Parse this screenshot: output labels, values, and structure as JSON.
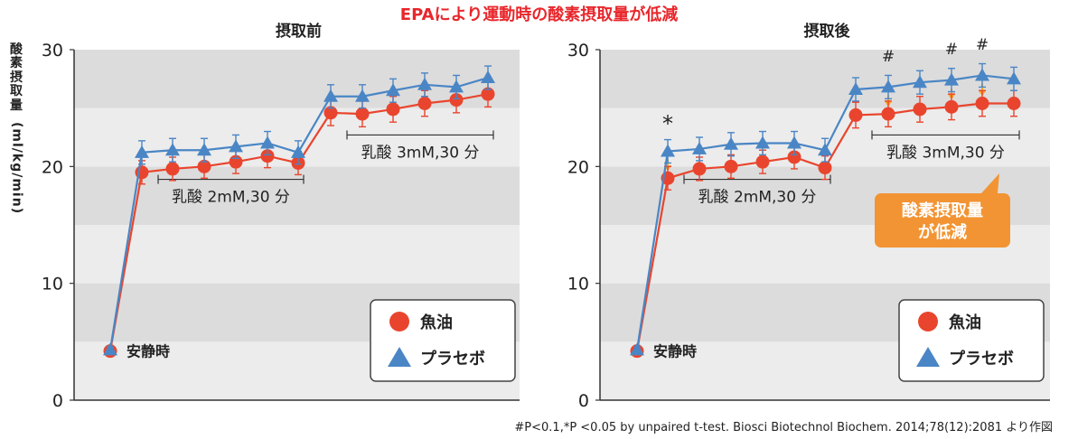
{
  "title": "EPAにより運動時の酸素摂取量が低減",
  "ylabel_jp": [
    "酸",
    "素",
    "摂",
    "取",
    "量"
  ],
  "ylabel_unit": "(ml/kg/min)",
  "footnote": "#P<0.1,*P <0.05 by unpaired t-test. Biosci Biotechnol Biochem. 2014;78(12):2081 より作図",
  "colors": {
    "fish_oil": "#e9452e",
    "placebo": "#4a86c5",
    "band_dark": "#dcdcdc",
    "band_light": "#ececec",
    "callout": "#f29433",
    "arrow": "#f5a623"
  },
  "chart_data": [
    {
      "type": "line",
      "title": "摂取前",
      "ylim": [
        0,
        30
      ],
      "yticks": [
        "0",
        "10",
        "20",
        "30"
      ],
      "series": [
        {
          "name": "魚油",
          "marker": "circle",
          "values": [
            4.2,
            19.5,
            19.8,
            20.0,
            20.4,
            20.9,
            20.3,
            24.6,
            24.5,
            24.9,
            25.4,
            25.7,
            26.2
          ],
          "errors": [
            0.3,
            1.0,
            1.0,
            1.0,
            1.0,
            1.0,
            1.0,
            1.1,
            1.1,
            1.1,
            1.1,
            1.1,
            1.1
          ]
        },
        {
          "name": "プラセボ",
          "marker": "triangle",
          "values": [
            4.3,
            21.2,
            21.4,
            21.4,
            21.7,
            22.0,
            21.2,
            26.0,
            26.0,
            26.5,
            27.0,
            26.8,
            27.6
          ],
          "errors": [
            0.3,
            1.0,
            1.0,
            1.0,
            1.0,
            1.0,
            1.0,
            1.0,
            1.0,
            1.0,
            1.0,
            1.0,
            1.0
          ]
        }
      ],
      "annotations": [
        {
          "text": "安静時",
          "type": "label"
        },
        {
          "text": "乳酸 2mM,30 分",
          "type": "bracket",
          "from": 1,
          "to": 6
        },
        {
          "text": "乳酸 3mM,30 分",
          "type": "bracket",
          "from": 7,
          "to": 12
        }
      ],
      "legend": {
        "position": "bottom-right",
        "entries": [
          "魚油",
          "プラセボ"
        ]
      }
    },
    {
      "type": "line",
      "title": "摂取後",
      "ylim": [
        0,
        30
      ],
      "yticks": [
        "0",
        "10",
        "20",
        "30"
      ],
      "series": [
        {
          "name": "魚油",
          "marker": "circle",
          "values": [
            4.2,
            19.0,
            19.8,
            20.0,
            20.4,
            20.8,
            19.9,
            24.4,
            24.5,
            24.9,
            25.1,
            25.4,
            25.4
          ],
          "errors": [
            0.3,
            1.0,
            1.0,
            1.0,
            1.0,
            1.0,
            1.0,
            1.1,
            1.1,
            1.1,
            1.1,
            1.1,
            1.1
          ]
        },
        {
          "name": "プラセボ",
          "marker": "triangle",
          "values": [
            4.3,
            21.3,
            21.5,
            21.9,
            22.0,
            22.0,
            21.4,
            26.6,
            26.8,
            27.2,
            27.4,
            27.8,
            27.5
          ],
          "errors": [
            0.3,
            1.0,
            1.0,
            1.0,
            1.0,
            1.0,
            1.0,
            1.0,
            1.0,
            1.0,
            1.0,
            1.0,
            1.0
          ]
        }
      ],
      "annotations": [
        {
          "text": "安静時",
          "type": "label"
        },
        {
          "text": "乳酸 2mM,30 分",
          "type": "bracket",
          "from": 1,
          "to": 6
        },
        {
          "text": "乳酸 3mM,30 分",
          "type": "bracket",
          "from": 7,
          "to": 12
        },
        {
          "text": "*",
          "type": "significance",
          "index": 1
        },
        {
          "text": "#",
          "type": "significance",
          "index": 8
        },
        {
          "text": "#",
          "type": "significance",
          "index": 10
        },
        {
          "text": "#",
          "type": "significance",
          "index": 11
        },
        {
          "text": "酸素摂取量\nが低減",
          "type": "callout"
        }
      ],
      "legend": {
        "position": "bottom-right",
        "entries": [
          "魚油",
          "プラセボ"
        ]
      }
    }
  ]
}
